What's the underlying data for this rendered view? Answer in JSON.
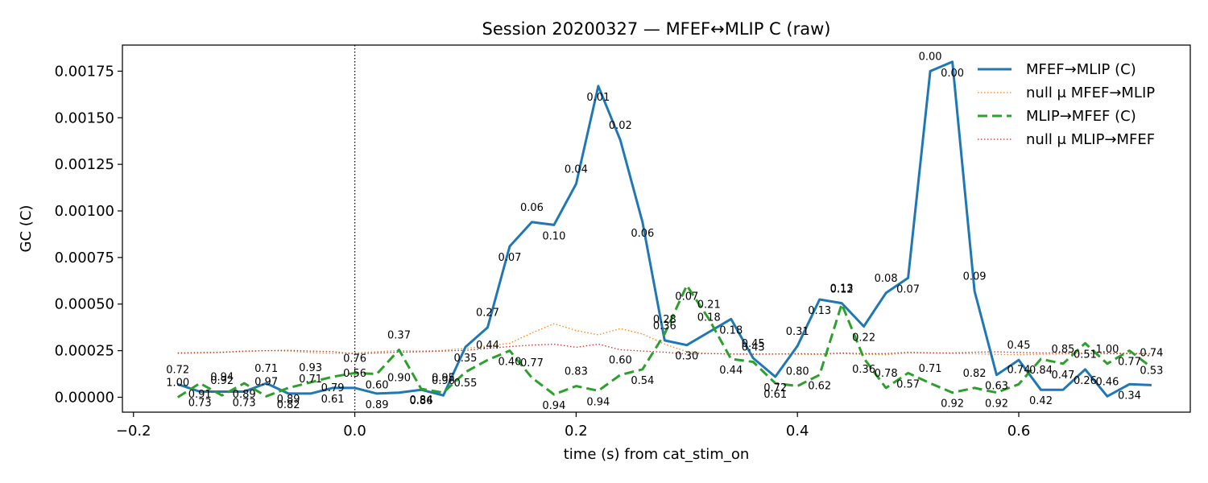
{
  "chart_data": {
    "type": "line",
    "title": "Session 20200327 — MFEF↔MLIP C (raw)",
    "xlabel": "time (s) from cat_stim_on",
    "ylabel": "GC (C)",
    "xlim": [
      -0.21,
      0.755
    ],
    "ylim": [
      -8e-05,
      0.00189
    ],
    "xticks": [
      -0.2,
      0.0,
      0.2,
      0.4,
      0.6
    ],
    "xtick_labels": [
      "−0.2",
      "0.0",
      "0.2",
      "0.4",
      "0.6"
    ],
    "yticks": [
      0,
      0.00025,
      0.0005,
      0.00075,
      0.001,
      0.00125,
      0.0015,
      0.00175
    ],
    "ytick_labels": [
      "0.00000",
      "0.00025",
      "0.00050",
      "0.00075",
      "0.00100",
      "0.00125",
      "0.00150",
      "0.00175"
    ],
    "vline_x": 0.0,
    "legend_position": "top-right",
    "x": [
      -0.16,
      -0.14,
      -0.12,
      -0.1,
      -0.08,
      -0.06,
      -0.04,
      -0.02,
      0.0,
      0.02,
      0.04,
      0.06,
      0.08,
      0.1,
      0.12,
      0.14,
      0.16,
      0.18,
      0.2,
      0.22,
      0.24,
      0.26,
      0.28,
      0.3,
      0.32,
      0.34,
      0.36,
      0.38,
      0.4,
      0.42,
      0.44,
      0.46,
      0.48,
      0.5,
      0.52,
      0.54,
      0.56,
      0.58,
      0.6,
      0.62,
      0.64,
      0.66,
      0.68,
      0.7,
      0.72
    ],
    "series": [
      {
        "name": "MFEF→MLIP (C)",
        "color": "#1f77b4",
        "style": "solid",
        "values": [
          7e-05,
          3e-05,
          3e-05,
          3e-05,
          7.5e-05,
          2e-05,
          2e-05,
          5e-05,
          5e-05,
          2e-05,
          2.5e-05,
          4e-05,
          1e-05,
          0.00027,
          0.000375,
          0.00081,
          0.00094,
          0.000925,
          0.001145,
          0.00167,
          0.00138,
          0.00094,
          0.000305,
          0.00028,
          0.00035,
          0.00042,
          0.00021,
          0.00011,
          0.000275,
          0.000525,
          0.000505,
          0.00038,
          0.00056,
          0.00064,
          0.00175,
          0.0018,
          0.00057,
          0.00012,
          0.0002,
          4e-05,
          4e-05,
          0.00015,
          5e-06,
          7e-05,
          6.5e-05
        ],
        "pvalues": [
          "0.72",
          "0.73",
          "0.94",
          "0.73",
          "0.71",
          "0.82",
          "0.71",
          "0.61",
          "0.56",
          "0.89",
          "0.90",
          "0.86",
          "0.96",
          "0.35",
          "0.27",
          "0.07",
          "0.06",
          "0.10",
          "0.04",
          "0.01",
          "0.02",
          "0.06",
          "0.36",
          "0.30",
          "0.18",
          "0.18",
          "0.45",
          "0.72",
          "0.31",
          "0.13",
          "0.13",
          "0.22",
          "0.08",
          "0.07",
          "0.00",
          "0.00",
          "0.09",
          "0.63",
          "0.45",
          "0.42",
          "0.47",
          "0.26",
          "0.46",
          "0.34",
          "0.53"
        ]
      },
      {
        "name": "null μ MFEF→MLIP",
        "color": "#ff7f0e",
        "style": "dotted",
        "values": [
          0.000235,
          0.000237,
          0.00024,
          0.000245,
          0.00025,
          0.000248,
          0.00024,
          0.000235,
          0.000238,
          0.000245,
          0.00025,
          0.000248,
          0.000252,
          0.000262,
          0.000275,
          0.00029,
          0.000345,
          0.000395,
          0.000358,
          0.000335,
          0.000368,
          0.00034,
          0.000285,
          0.000245,
          0.000235,
          0.000232,
          0.00023,
          0.000232,
          0.00023,
          0.00023,
          0.000234,
          0.00023,
          0.000228,
          0.000237,
          0.000238,
          0.000235,
          0.000233,
          0.00023,
          0.000228,
          0.00023,
          0.000232,
          0.000234,
          0.000236,
          0.000237,
          0.000235
        ]
      },
      {
        "name": "MLIP→MFEF (C)",
        "color": "#2ca02c",
        "style": "dashed",
        "values": [
          0.0,
          7.5e-05,
          1e-05,
          7.5e-05,
          5e-06,
          5e-05,
          8e-05,
          0.00011,
          0.00013,
          0.000125,
          0.000255,
          4.5e-05,
          2.5e-05,
          0.000135,
          0.0002,
          0.00025,
          0.000105,
          1.5e-05,
          6e-05,
          3.5e-05,
          0.00012,
          0.00015,
          0.00034,
          0.0006,
          0.00042,
          0.000205,
          0.00019,
          7.5e-05,
          6e-05,
          0.00012,
          0.0005,
          0.00021,
          5e-05,
          0.00013,
          7.5e-05,
          2.5e-05,
          5e-05,
          2.5e-05,
          7e-05,
          0.000205,
          0.00018,
          0.00029,
          0.00018,
          0.00025,
          0.00016
        ],
        "pvalues": [
          "1.00",
          "0.91",
          "0.92",
          "0.89",
          "0.97",
          "0.89",
          "0.93",
          "0.79",
          "0.76",
          "0.60",
          "0.37",
          "0.84",
          "0.95",
          "0.55",
          "0.44",
          "0.40",
          "0.77",
          "0.94",
          "0.83",
          "0.94",
          "0.60",
          "0.54",
          "0.28",
          "0.07",
          "0.21",
          "0.44",
          "0.43",
          "0.61",
          "0.80",
          "0.62",
          "0.12",
          "0.36",
          "0.78",
          "0.57",
          "0.71",
          "0.92",
          "0.82",
          "0.92",
          "0.74",
          "0.84",
          "0.85",
          "0.51",
          "1.00",
          "0.77",
          "0.74"
        ]
      },
      {
        "name": "null μ MLIP→MFEF",
        "color": "#d62728",
        "style": "dotted",
        "values": [
          0.000238,
          0.00024,
          0.000242,
          0.000248,
          0.00025,
          0.000252,
          0.000248,
          0.000245,
          0.000232,
          0.000238,
          0.000242,
          0.000244,
          0.000248,
          0.000252,
          0.000262,
          0.000272,
          0.00028,
          0.000285,
          0.000268,
          0.000285,
          0.000255,
          0.000248,
          0.000242,
          0.000232,
          0.000235,
          0.000232,
          0.000232,
          0.000232,
          0.000234,
          0.000232,
          0.000238,
          0.000234,
          0.000234,
          0.000242,
          0.000238,
          0.000238,
          0.000242,
          0.000244,
          0.00024,
          0.000238,
          0.000238,
          0.000236,
          0.000234,
          0.000234,
          0.000232
        ]
      }
    ]
  }
}
